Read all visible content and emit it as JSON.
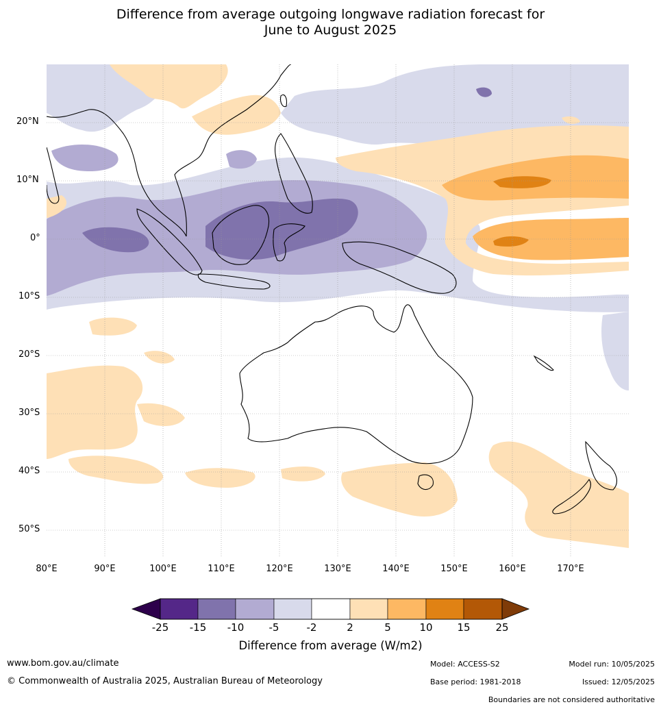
{
  "title_line1": "Difference from average outgoing longwave radiation forecast for",
  "title_line2": "June to August 2025",
  "map": {
    "region": "Indian Ocean, Maritime Continent, Australia and western Pacific",
    "lat_labels": [
      "20°N",
      "10°N",
      "0°",
      "10°S",
      "20°S",
      "30°S",
      "40°S",
      "50°S"
    ],
    "lon_labels": [
      "80°E",
      "90°E",
      "100°E",
      "110°E",
      "120°E",
      "130°E",
      "140°E",
      "150°E",
      "160°E",
      "170°E"
    ],
    "lon_range": [
      80,
      180
    ],
    "lat_range": [
      -55,
      30
    ]
  },
  "colorbar": {
    "title": "Difference from average (W/m2)",
    "ticks": [
      "-25",
      "-15",
      "-10",
      "-5",
      "-2",
      "2",
      "5",
      "10",
      "15",
      "25"
    ],
    "colors": {
      "below_min": "#2d004b",
      "c1": "#542788",
      "c2": "#8073ac",
      "c3": "#b2abd2",
      "c4": "#d8daeb",
      "c5": "#ffffff",
      "c6": "#fee0b6",
      "c7": "#fdb863",
      "c8": "#e08214",
      "c9": "#b35806",
      "above_max": "#7f3b08"
    }
  },
  "footer": {
    "website": "www.bom.gov.au/climate",
    "copyright": "© Commonwealth of Australia 2025, Australian Bureau of Meteorology",
    "model": "Model: ACCESS-S2",
    "base_period": "Base period: 1981-2018",
    "model_run": "Model run: 10/05/2025",
    "issued": "Issued: 12/05/2025",
    "disclaimer": "Boundaries are not considered authoritative"
  }
}
